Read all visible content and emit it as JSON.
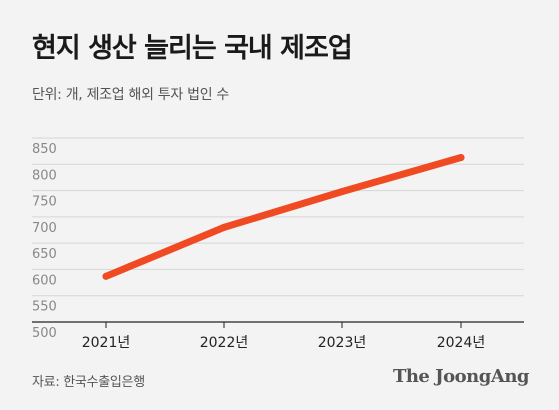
{
  "header": {
    "title": "현지 생산 늘리는 국내 제조업",
    "subtitle": "단위: 개, 제조업 해외 투자 법인 수"
  },
  "footer": {
    "source": "자료: 한국수출입은행",
    "logo": "The JoongAng"
  },
  "colors": {
    "line": "#f04a23",
    "grid": "#d6d6d6",
    "axis": "#222222",
    "background": "#f3f3f3"
  },
  "chart_data": {
    "type": "line",
    "categories": [
      "2021년",
      "2022년",
      "2023년",
      "2024년"
    ],
    "series": [
      {
        "values": [
          587,
          680,
          748,
          813
        ]
      }
    ],
    "title": "현지 생산 늘리는 국내 제조업",
    "subtitle": "단위: 개, 제조업 해외 투자 법인 수",
    "ylim": [
      500,
      850
    ],
    "yticks": [
      850,
      800,
      750,
      700,
      650,
      600,
      550,
      500
    ],
    "grid": true,
    "legend": "none"
  }
}
